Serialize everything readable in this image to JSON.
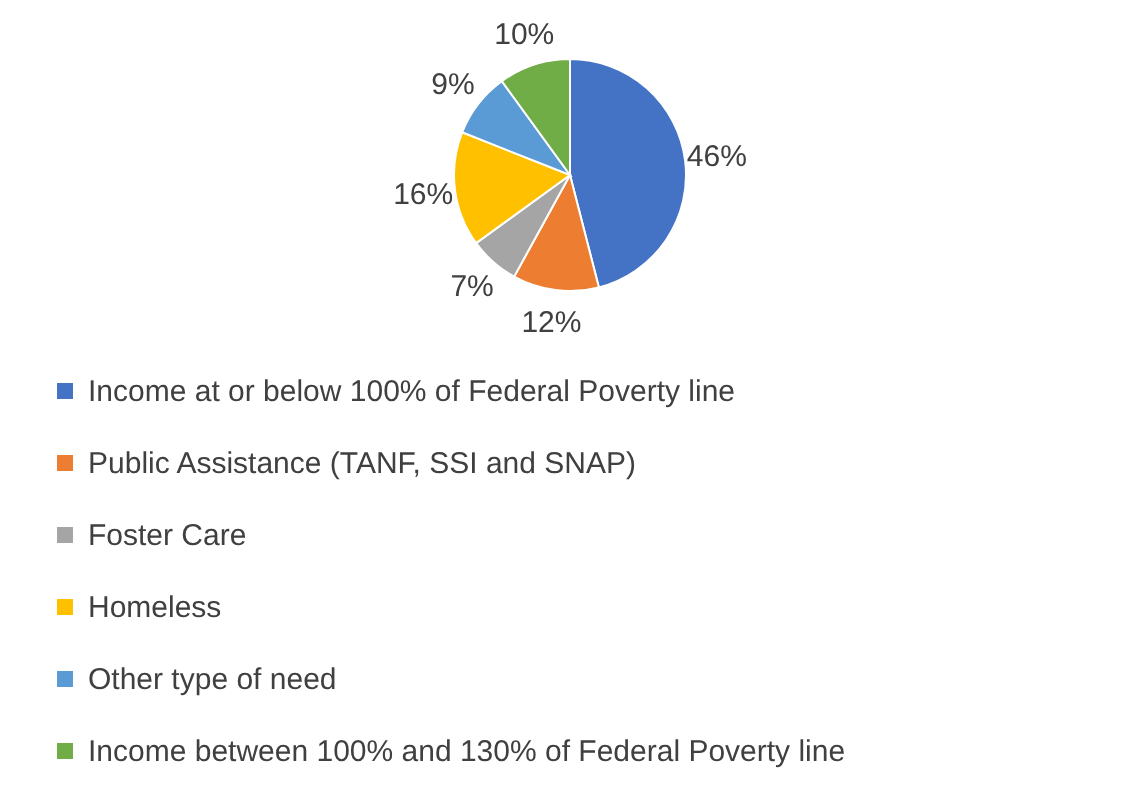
{
  "chart_data": {
    "type": "pie",
    "categories": [
      "Income at or below 100% of Federal Poverty line",
      "Public Assistance (TANF, SSI and SNAP)",
      "Foster Care",
      "Homeless",
      "Other type of need",
      "Income between 100% and 130% of Federal Poverty line"
    ],
    "values": [
      46,
      12,
      7,
      16,
      9,
      10
    ],
    "value_labels": [
      "46%",
      "12%",
      "7%",
      "16%",
      "9%",
      "10%"
    ],
    "colors": [
      "#4472c4",
      "#ed7d31",
      "#a5a5a5",
      "#ffc000",
      "#5b9bd5",
      "#70ad47"
    ],
    "legend": "bottom"
  }
}
